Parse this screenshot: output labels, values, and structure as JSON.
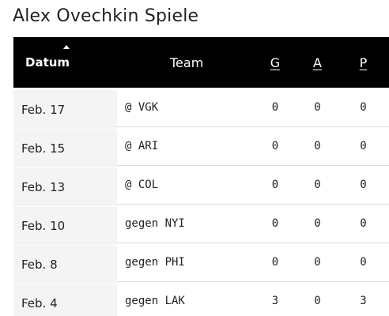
{
  "page": {
    "title": "Alex Ovechkin Spiele"
  },
  "table": {
    "headers": {
      "date": "Datum",
      "team": "Team",
      "goals": "G",
      "assists": "A",
      "points": "P"
    },
    "sort": {
      "column": "date",
      "direction": "ascending-indicator",
      "icon": "sort-arrow-up-icon"
    },
    "rows": [
      {
        "date": "Feb. 17",
        "team": "@ VGK",
        "g": "0",
        "a": "0",
        "p": "0"
      },
      {
        "date": "Feb. 15",
        "team": "@ ARI",
        "g": "0",
        "a": "0",
        "p": "0"
      },
      {
        "date": "Feb. 13",
        "team": "@ COL",
        "g": "0",
        "a": "0",
        "p": "0"
      },
      {
        "date": "Feb. 10",
        "team": "gegen NYI",
        "g": "0",
        "a": "0",
        "p": "0"
      },
      {
        "date": "Feb. 8",
        "team": "gegen PHI",
        "g": "0",
        "a": "0",
        "p": "0"
      },
      {
        "date": "Feb. 4",
        "team": "gegen LAK",
        "g": "3",
        "a": "0",
        "p": "3"
      }
    ]
  },
  "colors": {
    "header_background": "#000000",
    "header_text": "#ffffff",
    "date_cell_background": "#f4f4f4",
    "row_divider": "#dcdcdc",
    "text": "#222222"
  }
}
